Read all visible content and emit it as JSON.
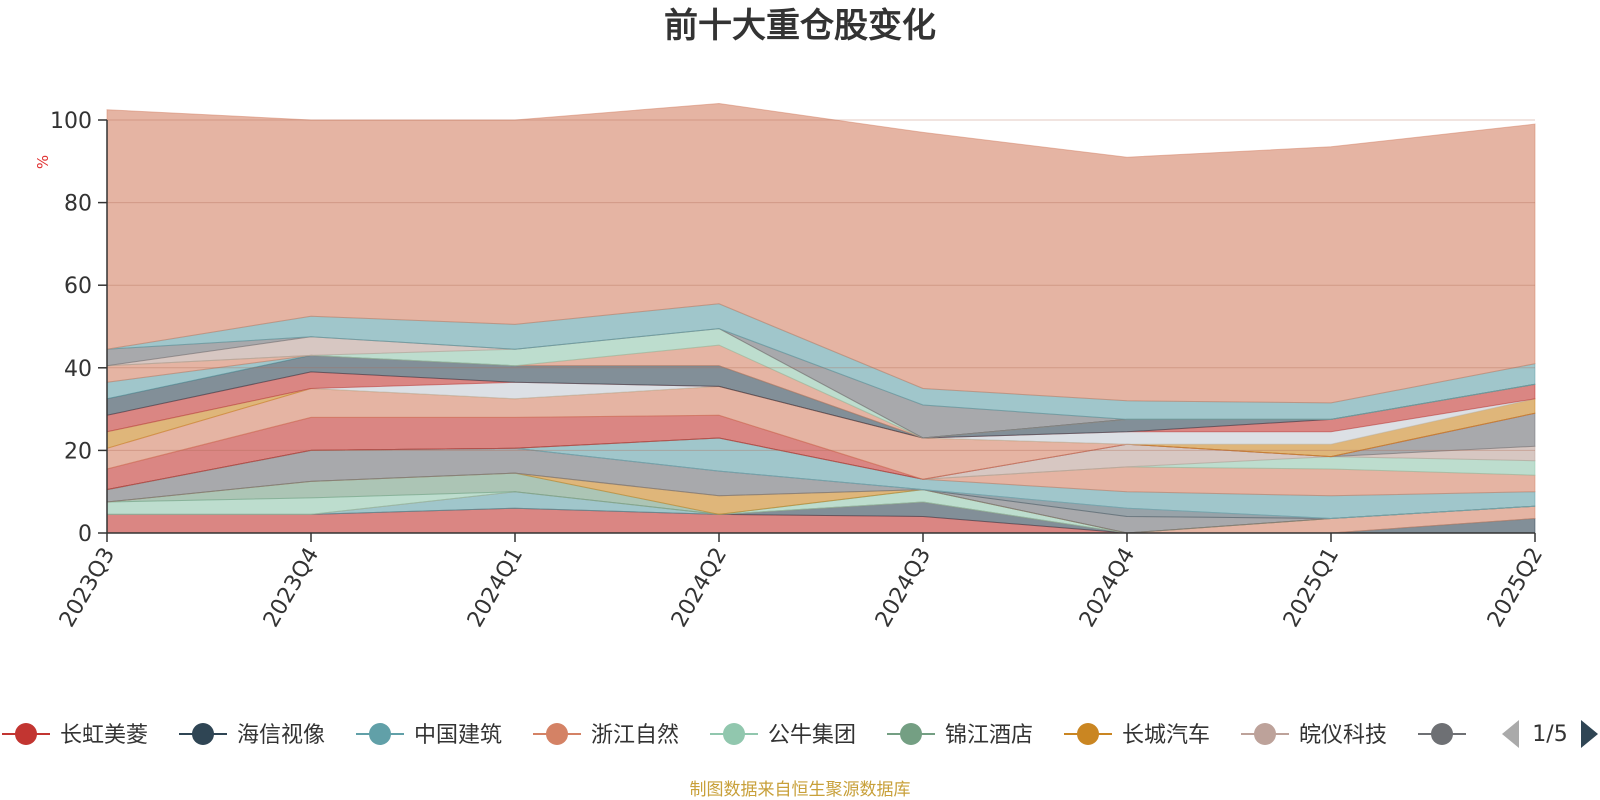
{
  "chart_data": {
    "type": "area",
    "title": "前十大重仓股变化",
    "ylabel": "%",
    "ylim": [
      0,
      100
    ],
    "yticks": [
      0,
      20,
      40,
      60,
      80,
      100
    ],
    "grid": true,
    "legend_position": "bottom",
    "categories": [
      "2023Q3",
      "2023Q4",
      "2024Q1",
      "2024Q2",
      "2024Q3",
      "2024Q4",
      "2025Q1",
      "2025Q2"
    ],
    "series": [
      {
        "name": "长虹美菱",
        "color": "#c23531",
        "values": [
          4.5,
          4.5,
          6.0,
          4.5,
          4.0,
          0.0,
          0.0,
          0.0
        ]
      },
      {
        "name": "海信视像",
        "color": "#2f4554",
        "values": [
          0.0,
          0.0,
          0.0,
          0.0,
          3.5,
          0.0,
          0.0,
          3.5
        ]
      },
      {
        "name": "中国建筑",
        "color": "#61a0a8",
        "values": [
          0.0,
          0.0,
          4.0,
          0.0,
          0.0,
          0.0,
          0.0,
          0.0
        ]
      },
      {
        "name": "浙江自然",
        "color": "#d48265",
        "values": [
          0.0,
          0.0,
          0.0,
          0.0,
          0.0,
          0.0,
          3.5,
          3.0
        ]
      },
      {
        "name": "公牛集团",
        "color": "#91c7ae",
        "values": [
          3.0,
          4.0,
          0.0,
          0.0,
          3.0,
          0.0,
          0.0,
          0.0
        ]
      },
      {
        "name": "锦江酒店",
        "color": "#749f83",
        "values": [
          0.0,
          4.0,
          4.5,
          0.0,
          0.0,
          0.0,
          0.0,
          0.0
        ]
      },
      {
        "name": "长城汽车",
        "color": "#ca8622",
        "values": [
          0.0,
          0.0,
          0.0,
          4.5,
          0.0,
          0.0,
          0.0,
          0.0
        ]
      },
      {
        "name": "皖仪科技",
        "color": "#bda29a",
        "values": [
          0.0,
          0.0,
          0.0,
          0.0,
          0.0,
          0.0,
          0.0,
          0.0
        ]
      },
      {
        "name": "",
        "color": "#6e7074",
        "values": [
          3.0,
          7.5,
          6.0,
          6.0,
          0.0,
          4.0,
          0.0,
          0.0
        ]
      },
      {
        "name": "",
        "color": "#546570",
        "values": [
          0.0,
          0.0,
          0.0,
          0.0,
          0.0,
          2.0,
          0.0,
          0.0
        ]
      },
      {
        "name": "",
        "color": "#c4ccd3",
        "values": [
          0.0,
          0.0,
          0.0,
          0.0,
          0.0,
          0.0,
          0.0,
          0.0
        ]
      },
      {
        "name": "",
        "color": "#61a0a8",
        "values": [
          0.0,
          0.0,
          0.0,
          8.0,
          2.5,
          4.0,
          5.5,
          3.5
        ]
      },
      {
        "name": "",
        "color": "#d48265",
        "values": [
          0.0,
          0.0,
          0.0,
          0.0,
          0.0,
          6.0,
          6.5,
          4.0
        ]
      },
      {
        "name": "",
        "color": "#91c7ae",
        "values": [
          0.0,
          0.0,
          0.0,
          0.0,
          0.0,
          0.0,
          3.0,
          3.5
        ]
      },
      {
        "name": "",
        "color": "#bda29a",
        "values": [
          0.0,
          0.0,
          0.0,
          0.0,
          0.0,
          5.5,
          0.0,
          3.5
        ]
      },
      {
        "name": "",
        "color": "#6e7074",
        "values": [
          0.0,
          0.0,
          0.0,
          0.0,
          0.0,
          0.0,
          0.0,
          8.0
        ]
      },
      {
        "name": "",
        "color": "#c23531",
        "values": [
          5.0,
          8.0,
          7.5,
          5.5,
          0.0,
          0.0,
          0.0,
          0.0
        ]
      },
      {
        "name": "",
        "color": "#d48265",
        "values": [
          5.0,
          7.0,
          4.5,
          7.0,
          10.0,
          0.0,
          0.0,
          0.0
        ]
      },
      {
        "name": "",
        "color": "#ca8622",
        "values": [
          4.0,
          0.0,
          0.0,
          0.0,
          0.0,
          0.0,
          3.0,
          3.5
        ]
      },
      {
        "name": "",
        "color": "#c4ccd3",
        "values": [
          0.0,
          0.0,
          4.0,
          0.0,
          0.0,
          3.0,
          3.0,
          0.0
        ]
      },
      {
        "name": "",
        "color": "#c23531",
        "values": [
          4.0,
          4.0,
          0.0,
          0.0,
          0.0,
          0.0,
          3.0,
          3.5
        ]
      },
      {
        "name": "",
        "color": "#2f4554",
        "values": [
          4.0,
          4.0,
          4.0,
          5.0,
          0.0,
          3.0,
          0.0,
          0.0
        ]
      },
      {
        "name": "",
        "color": "#61a0a8",
        "values": [
          4.0,
          0.0,
          0.0,
          0.0,
          0.0,
          0.0,
          0.0,
          0.0
        ]
      },
      {
        "name": "",
        "color": "#d48265",
        "values": [
          4.0,
          0.0,
          0.0,
          5.0,
          0.0,
          0.0,
          0.0,
          0.0
        ]
      },
      {
        "name": "",
        "color": "#91c7ae",
        "values": [
          0.0,
          0.0,
          4.0,
          4.0,
          0.0,
          0.0,
          0.0,
          0.0
        ]
      },
      {
        "name": "",
        "color": "#bda29a",
        "values": [
          0.0,
          4.5,
          0.0,
          0.0,
          0.0,
          0.0,
          0.0,
          0.0
        ]
      },
      {
        "name": "",
        "color": "#6e7074",
        "values": [
          4.0,
          0.0,
          0.0,
          0.0,
          8.0,
          0.0,
          0.0,
          0.0
        ]
      },
      {
        "name": "",
        "color": "#61a0a8",
        "values": [
          0.0,
          5.0,
          6.0,
          6.0,
          4.0,
          4.5,
          4.0,
          5.0
        ]
      },
      {
        "name": "",
        "color": "#d48265",
        "values": [
          58.0,
          47.5,
          49.5,
          48.5,
          62.0,
          59.0,
          62.0,
          58.0
        ]
      }
    ]
  },
  "legend": {
    "items": [
      {
        "label": "长虹美菱",
        "color": "#c23531"
      },
      {
        "label": "海信视像",
        "color": "#2f4554"
      },
      {
        "label": "中国建筑",
        "color": "#61a0a8"
      },
      {
        "label": "浙江自然",
        "color": "#d48265"
      },
      {
        "label": "公牛集团",
        "color": "#91c7ae"
      },
      {
        "label": "锦江酒店",
        "color": "#749f83"
      },
      {
        "label": "长城汽车",
        "color": "#ca8622"
      },
      {
        "label": "皖仪科技",
        "color": "#bda29a"
      },
      {
        "label": "",
        "color": "#6e7074"
      }
    ],
    "page_indicator": "1/5"
  },
  "source_note": "制图数据来自恒生聚源数据库",
  "colors": {
    "source_note": "#c8a03a",
    "unit": "#e03030",
    "axis": "#333333"
  }
}
